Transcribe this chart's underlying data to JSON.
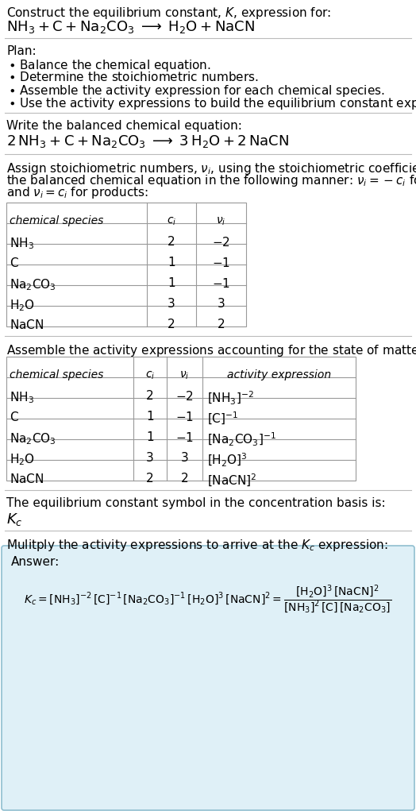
{
  "bg_color": "#ffffff",
  "text_color": "#000000",
  "answer_bg": "#dff0f7",
  "answer_border": "#90bfd0",
  "sections": {
    "title_line1": "Construct the equilibrium constant, $K$, expression for:",
    "title_line2": "$\\mathrm{NH_3} + \\mathrm{C} + \\mathrm{Na_2CO_3} \\;\\longrightarrow\\; \\mathrm{H_2O} + \\mathrm{NaCN}$",
    "plan_header": "Plan:",
    "plan_items": [
      "$\\bullet$ Balance the chemical equation.",
      "$\\bullet$ Determine the stoichiometric numbers.",
      "$\\bullet$ Assemble the activity expression for each chemical species.",
      "$\\bullet$ Use the activity expressions to build the equilibrium constant expression."
    ],
    "balanced_header": "Write the balanced chemical equation:",
    "balanced_eq": "$2\\,\\mathrm{NH_3} + \\mathrm{C} + \\mathrm{Na_2CO_3} \\;\\longrightarrow\\; 3\\,\\mathrm{H_2O} + 2\\,\\mathrm{NaCN}$",
    "stoich_lines": [
      "Assign stoichiometric numbers, $\\nu_i$, using the stoichiometric coefficients, $c_i$, from",
      "the balanced chemical equation in the following manner: $\\nu_i = -c_i$ for reactants",
      "and $\\nu_i = c_i$ for products:"
    ],
    "table1_header": [
      "chemical species",
      "$c_i$",
      "$\\nu_i$"
    ],
    "table1_rows": [
      [
        "$\\mathrm{NH_3}$",
        "2",
        "$-2$"
      ],
      [
        "$\\mathrm{C}$",
        "1",
        "$-1$"
      ],
      [
        "$\\mathrm{Na_2CO_3}$",
        "1",
        "$-1$"
      ],
      [
        "$\\mathrm{H_2O}$",
        "3",
        "3"
      ],
      [
        "$\\mathrm{NaCN}$",
        "2",
        "2"
      ]
    ],
    "activity_header": "Assemble the activity expressions accounting for the state of matter and $\\nu_i$:",
    "table2_header": [
      "chemical species",
      "$c_i$",
      "$\\nu_i$",
      "activity expression"
    ],
    "table2_rows": [
      [
        "$\\mathrm{NH_3}$",
        "2",
        "$-2$",
        "$[\\mathrm{NH_3}]^{-2}$"
      ],
      [
        "$\\mathrm{C}$",
        "1",
        "$-1$",
        "$[\\mathrm{C}]^{-1}$"
      ],
      [
        "$\\mathrm{Na_2CO_3}$",
        "1",
        "$-1$",
        "$[\\mathrm{Na_2CO_3}]^{-1}$"
      ],
      [
        "$\\mathrm{H_2O}$",
        "3",
        "3",
        "$[\\mathrm{H_2O}]^3$"
      ],
      [
        "$\\mathrm{NaCN}$",
        "2",
        "2",
        "$[\\mathrm{NaCN}]^2$"
      ]
    ],
    "kc_header": "The equilibrium constant symbol in the concentration basis is:",
    "kc_symbol": "$K_c$",
    "multiply_header": "Mulitply the activity expressions to arrive at the $K_c$ expression:",
    "answer_label": "Answer:",
    "answer_eq": "$K_c = [\\mathrm{NH_3}]^{-2}\\,[\\mathrm{C}]^{-1}\\,[\\mathrm{Na_2CO_3}]^{-1}\\,[\\mathrm{H_2O}]^3\\,[\\mathrm{NaCN}]^2 = \\dfrac{[\\mathrm{H_2O}]^3\\,[\\mathrm{NaCN}]^2}{[\\mathrm{NH_3}]^2\\,[\\mathrm{C}]\\,[\\mathrm{Na_2CO_3}]}$"
  }
}
